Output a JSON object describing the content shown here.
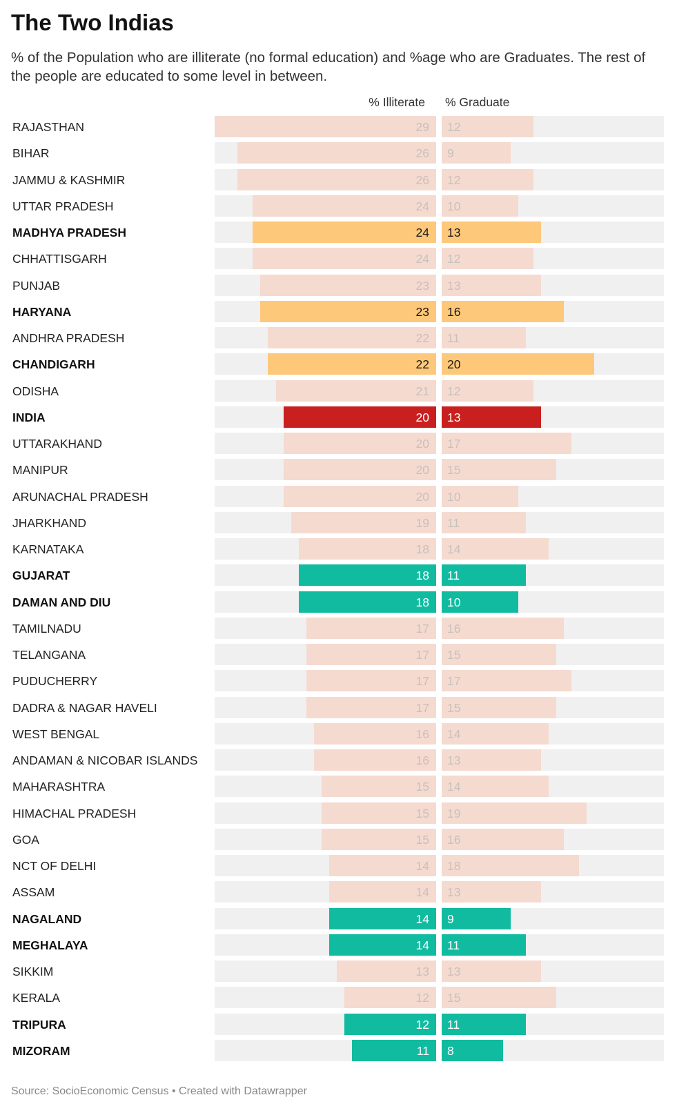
{
  "title": "The Two Indias",
  "subtitle": "% of the Population who are illiterate (no formal education) and %age who are Graduates. The rest of the people are educated to some level in between.",
  "source": "Source: SocioEconomic Census • Created with Datawrapper",
  "colors": {
    "normal_bar": "#f5dad0",
    "normal_text": "#c8c0bc",
    "orange": "#fdc879",
    "teal": "#11bba0",
    "red": "#c91f1f",
    "track": "#f0f0f0"
  },
  "chart_data": {
    "type": "bar",
    "orientation": "horizontal",
    "title": "The Two Indias",
    "series": [
      {
        "name": "% Illiterate",
        "values": [
          29,
          26,
          26,
          24,
          24,
          24,
          23,
          23,
          22,
          22,
          21,
          20,
          20,
          20,
          20,
          19,
          18,
          18,
          18,
          17,
          17,
          17,
          17,
          16,
          16,
          15,
          15,
          15,
          14,
          14,
          14,
          14,
          13,
          12,
          12,
          11
        ]
      },
      {
        "name": "% Graduate",
        "values": [
          12,
          9,
          12,
          10,
          13,
          12,
          13,
          16,
          11,
          20,
          12,
          13,
          17,
          15,
          10,
          11,
          14,
          11,
          10,
          16,
          15,
          17,
          15,
          14,
          13,
          14,
          19,
          16,
          18,
          13,
          9,
          11,
          13,
          15,
          11,
          8
        ]
      }
    ],
    "categories": [
      "RAJASTHAN",
      "BIHAR",
      "JAMMU & KASHMIR",
      "UTTAR PRADESH",
      "MADHYA PRADESH",
      "CHHATTISGARH",
      "PUNJAB",
      "HARYANA",
      "ANDHRA PRADESH",
      "CHANDIGARH",
      "ODISHA",
      "INDIA",
      "UTTARAKHAND",
      "MANIPUR",
      "ARUNACHAL PRADESH",
      "JHARKHAND",
      "KARNATAKA",
      "GUJARAT",
      "DAMAN AND DIU",
      "TAMILNADU",
      "TELANGANA",
      "PUDUCHERRY",
      "DADRA & NAGAR HAVELI",
      "WEST BENGAL",
      "ANDAMAN & NICOBAR ISLANDS",
      "MAHARASHTRA",
      "HIMACHAL PRADESH",
      "GOA",
      "NCT OF DELHI",
      "ASSAM",
      "NAGALAND",
      "MEGHALAYA",
      "SIKKIM",
      "KERALA",
      "TRIPURA",
      "MIZORAM"
    ],
    "highlight": [
      "normal",
      "normal",
      "normal",
      "normal",
      "orange",
      "normal",
      "normal",
      "orange",
      "normal",
      "orange",
      "normal",
      "red",
      "normal",
      "normal",
      "normal",
      "normal",
      "normal",
      "teal",
      "teal",
      "normal",
      "normal",
      "normal",
      "normal",
      "normal",
      "normal",
      "normal",
      "normal",
      "normal",
      "normal",
      "normal",
      "teal",
      "teal",
      "normal",
      "normal",
      "teal",
      "teal"
    ],
    "bold": [
      false,
      false,
      false,
      false,
      true,
      false,
      false,
      true,
      false,
      true,
      false,
      true,
      false,
      false,
      false,
      false,
      false,
      true,
      true,
      false,
      false,
      false,
      false,
      false,
      false,
      false,
      false,
      false,
      false,
      false,
      true,
      true,
      false,
      false,
      true,
      true
    ],
    "xlim": [
      0,
      30
    ]
  }
}
